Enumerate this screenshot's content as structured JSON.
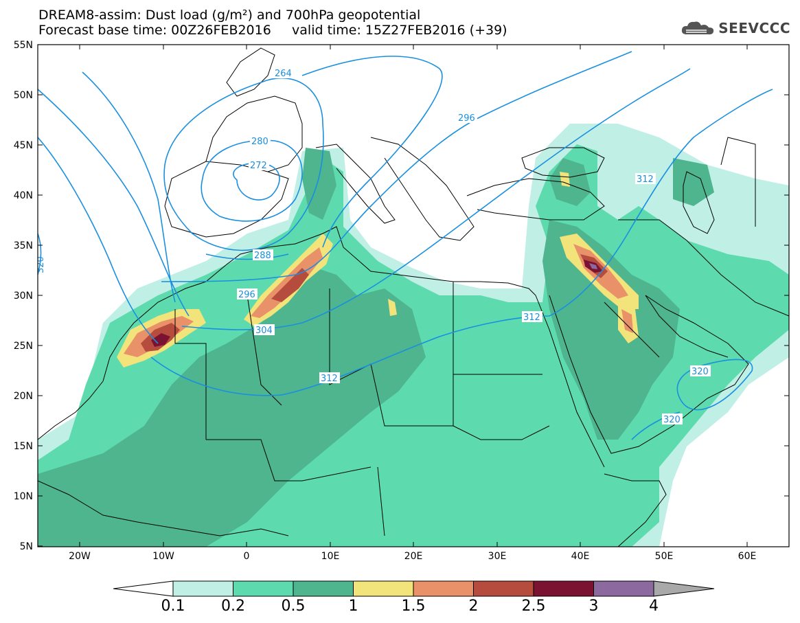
{
  "title": {
    "line1": "DREAM8-assim: Dust load (g/m²) and 700hPa geopotential",
    "line2": "Forecast base time: 00Z26FEB2016     valid time: 15Z27FEB2016 (+39)"
  },
  "logo": {
    "text": "SEEVCCC",
    "icon": "cloud-icon"
  },
  "map": {
    "lat_labels": [
      "55N",
      "50N",
      "45N",
      "40N",
      "35N",
      "30N",
      "25N",
      "20N",
      "15N",
      "10N",
      "5N"
    ],
    "lon_labels": [
      "20W",
      "10W",
      "0",
      "10E",
      "20E",
      "30E",
      "40E",
      "50E",
      "60E"
    ],
    "contour_labels": [
      "264",
      "272",
      "280",
      "288",
      "296",
      "296",
      "304",
      "312",
      "312",
      "312",
      "320",
      "320",
      "320"
    ]
  },
  "colorbar": {
    "levels": [
      "0.1",
      "0.2",
      "0.5",
      "1",
      "1.5",
      "2",
      "2.5",
      "3",
      "4"
    ],
    "colors": [
      "#c0efe6",
      "#5ddbae",
      "#4fb58e",
      "#f2e47a",
      "#e9926a",
      "#b54c3e",
      "#7b1232",
      "#8c6aa0"
    ],
    "under_color": "#ffffff",
    "over_color": "#a9a9a9"
  },
  "colors": {
    "contour": "#1a8fe0",
    "border": "#000000"
  }
}
